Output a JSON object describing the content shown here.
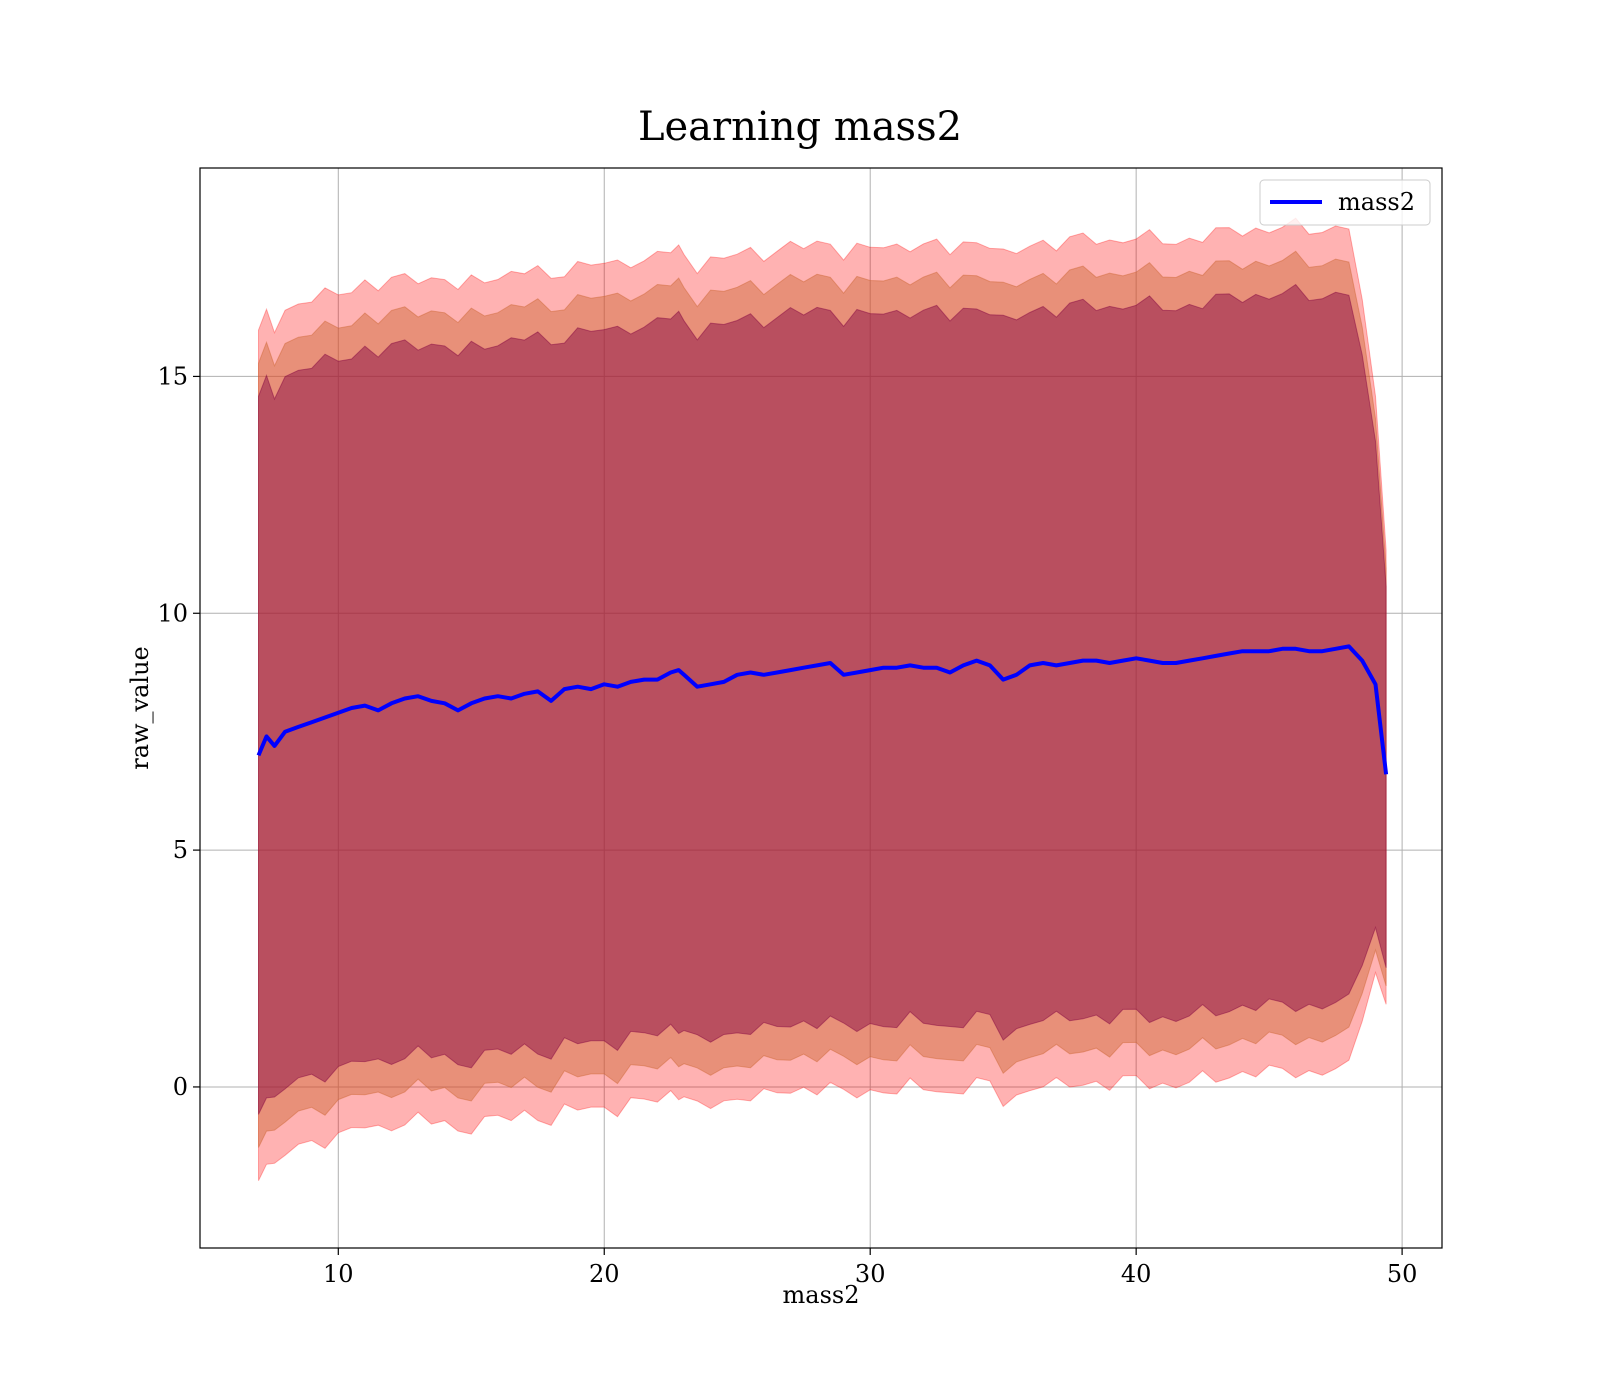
{
  "chart_data": {
    "type": "line",
    "title": "Learning mass2",
    "xlabel": "mass2",
    "ylabel": "raw_value",
    "xlim": [
      4.8,
      51.5
    ],
    "ylim": [
      -3.4,
      19.4
    ],
    "xticks": [
      10,
      20,
      30,
      40,
      50
    ],
    "yticks": [
      0,
      5,
      10,
      15
    ],
    "grid": true,
    "legend_position": "top-right",
    "colors": {
      "line": "#0000ff",
      "band_outer": "#ff0000",
      "band_middle": "#cc6633",
      "band_inner": "#800040",
      "grid": "#b0b0b0"
    },
    "series": [
      {
        "name": "mass2",
        "x": [
          7.0,
          7.3,
          7.6,
          8.0,
          8.5,
          9.0,
          9.5,
          10.0,
          10.5,
          11.0,
          11.5,
          12.0,
          12.5,
          13.0,
          13.5,
          14.0,
          14.5,
          15.0,
          15.5,
          16.0,
          16.5,
          17.0,
          17.5,
          18.0,
          18.5,
          19.0,
          19.5,
          20.0,
          20.5,
          21.0,
          21.5,
          22.0,
          22.5,
          22.8,
          23.0,
          23.5,
          24.0,
          24.5,
          25.0,
          25.5,
          26.0,
          26.5,
          27.0,
          27.5,
          28.0,
          28.5,
          29.0,
          29.5,
          30.0,
          30.5,
          31.0,
          31.5,
          32.0,
          32.5,
          33.0,
          33.5,
          34.0,
          34.5,
          35.0,
          35.5,
          36.0,
          36.5,
          37.0,
          37.5,
          38.0,
          38.5,
          39.0,
          39.5,
          40.0,
          40.5,
          41.0,
          41.5,
          42.0,
          42.5,
          43.0,
          43.5,
          44.0,
          44.5,
          45.0,
          45.5,
          46.0,
          46.5,
          47.0,
          47.5,
          48.0,
          48.5,
          49.0,
          49.4
        ],
        "y": [
          7.0,
          7.4,
          7.2,
          7.5,
          7.6,
          7.7,
          7.8,
          7.9,
          8.0,
          8.05,
          7.95,
          8.1,
          8.2,
          8.25,
          8.15,
          8.1,
          7.95,
          8.1,
          8.2,
          8.25,
          8.2,
          8.3,
          8.35,
          8.15,
          8.4,
          8.45,
          8.4,
          8.5,
          8.45,
          8.55,
          8.6,
          8.6,
          8.75,
          8.8,
          8.7,
          8.45,
          8.5,
          8.55,
          8.7,
          8.75,
          8.7,
          8.75,
          8.8,
          8.85,
          8.9,
          8.95,
          8.7,
          8.75,
          8.8,
          8.85,
          8.85,
          8.9,
          8.85,
          8.85,
          8.75,
          8.9,
          9.0,
          8.9,
          8.6,
          8.7,
          8.9,
          8.95,
          8.9,
          8.95,
          9.0,
          9.0,
          8.95,
          9.0,
          9.05,
          9.0,
          8.95,
          8.95,
          9.0,
          9.05,
          9.1,
          9.15,
          9.2,
          9.2,
          9.2,
          9.25,
          9.25,
          9.2,
          9.2,
          9.25,
          9.3,
          9.0,
          8.5,
          6.6
        ],
        "upper_outer_offset": 8.9,
        "upper_middle_offset": 8.2,
        "upper_inner_offset": 7.5
      }
    ]
  }
}
